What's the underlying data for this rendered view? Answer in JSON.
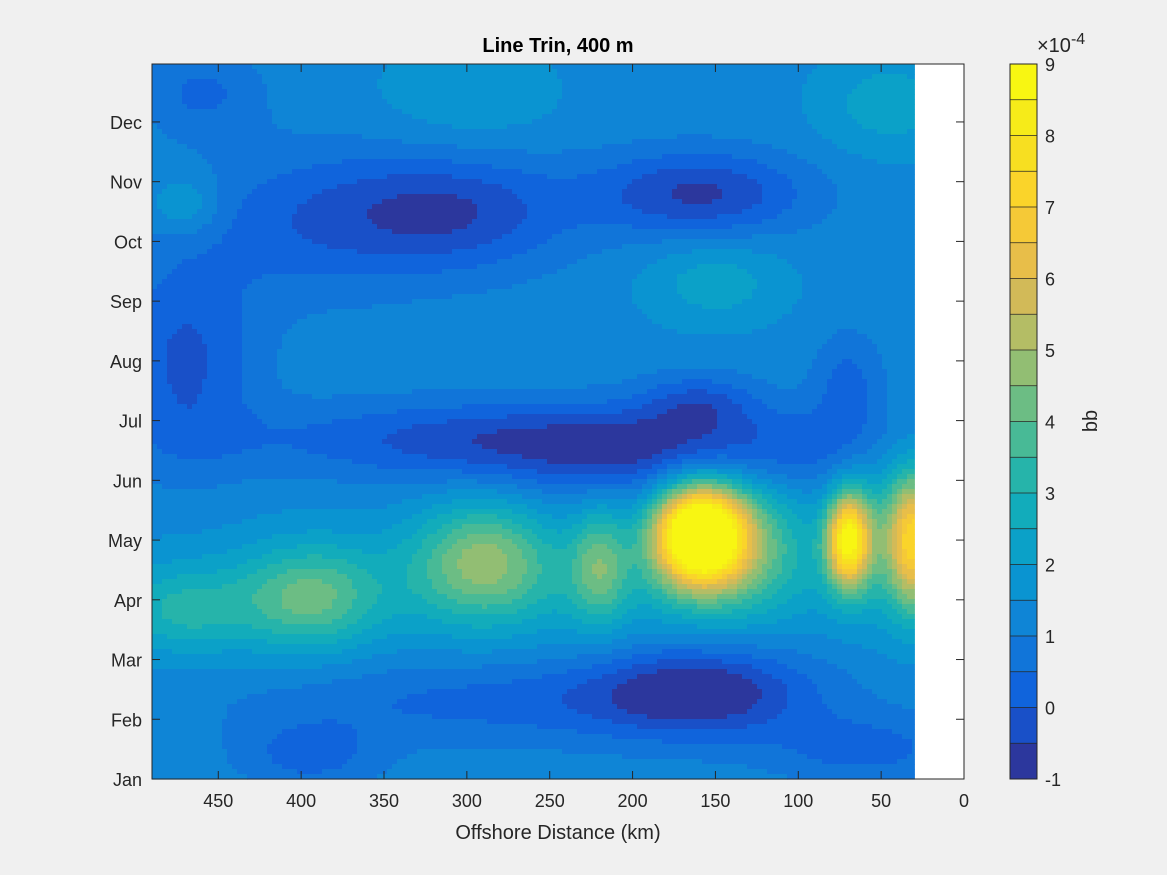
{
  "chart_data": {
    "type": "heatmap",
    "subtype": "filled-contour",
    "title": "Line Trin, 400 m",
    "xlabel": "Offshore Distance (km)",
    "ylabel": "",
    "x_reversed": true,
    "xlim": [
      0,
      490
    ],
    "xticks": [
      0,
      50,
      100,
      150,
      200,
      250,
      300,
      350,
      400,
      450
    ],
    "xtick_labels": [
      "0",
      "50",
      "100",
      "150",
      "200",
      "250",
      "300",
      "350",
      "400",
      "450"
    ],
    "data_x_range": [
      30,
      490
    ],
    "y_months": [
      "Jan",
      "Feb",
      "Mar",
      "Apr",
      "May",
      "Jun",
      "Jul",
      "Aug",
      "Sep",
      "Oct",
      "Nov",
      "Dec"
    ],
    "ylim_months": [
      1,
      12.97
    ],
    "colorbar": {
      "label": "bb",
      "exponent_label": "×10",
      "exponent_power": "-4",
      "min": -1,
      "max": 9,
      "levels": 20,
      "tick_values": [
        -1,
        0,
        1,
        2,
        3,
        4,
        5,
        6,
        7,
        8,
        9
      ],
      "tick_labels": [
        "-1",
        "0",
        "1",
        "2",
        "3",
        "4",
        "5",
        "6",
        "7",
        "8",
        "9"
      ],
      "colormap": "parula"
    },
    "background_value": 1.3,
    "features": [
      {
        "x": 160,
        "month": 5.1,
        "value": 8.6,
        "sx": 18,
        "sy": 0.55
      },
      {
        "x": 140,
        "month": 5.0,
        "value": 3.0,
        "sx": 30,
        "sy": 0.8
      },
      {
        "x": 70,
        "month": 5.0,
        "value": 6.6,
        "sx": 9,
        "sy": 0.55
      },
      {
        "x": 45,
        "month": 5.1,
        "value": 2.0,
        "sx": 20,
        "sy": 0.9
      },
      {
        "x": 30,
        "month": 5.0,
        "value": 4.5,
        "sx": 10,
        "sy": 0.8
      },
      {
        "x": 290,
        "month": 4.7,
        "value": 2.7,
        "sx": 28,
        "sy": 0.7
      },
      {
        "x": 220,
        "month": 4.6,
        "value": 2.2,
        "sx": 12,
        "sy": 0.7
      },
      {
        "x": 395,
        "month": 4.0,
        "value": 2.3,
        "sx": 28,
        "sy": 0.6
      },
      {
        "x": 470,
        "month": 3.8,
        "value": 1.6,
        "sx": 30,
        "sy": 0.5
      },
      {
        "x": 270,
        "month": 4.3,
        "value": 1.0,
        "sx": 150,
        "sy": 0.7
      },
      {
        "x": 250,
        "month": 6.7,
        "value": -1.7,
        "sx": 120,
        "sy": 0.45
      },
      {
        "x": 180,
        "month": 6.2,
        "value": -1.0,
        "sx": 90,
        "sy": 0.5
      },
      {
        "x": 160,
        "month": 2.5,
        "value": -2.0,
        "sx": 45,
        "sy": 0.55
      },
      {
        "x": 270,
        "month": 2.3,
        "value": -1.0,
        "sx": 110,
        "sy": 0.5
      },
      {
        "x": 310,
        "month": 10.5,
        "value": -1.8,
        "sx": 50,
        "sy": 0.7
      },
      {
        "x": 160,
        "month": 10.8,
        "value": -1.9,
        "sx": 45,
        "sy": 0.5
      },
      {
        "x": 400,
        "month": 10.3,
        "value": -1.0,
        "sx": 50,
        "sy": 0.9
      },
      {
        "x": 470,
        "month": 8.0,
        "value": -1.4,
        "sx": 30,
        "sy": 1.2
      },
      {
        "x": 150,
        "month": 9.3,
        "value": 1.0,
        "sx": 30,
        "sy": 0.5
      },
      {
        "x": 160,
        "month": 7.3,
        "value": -1.2,
        "sx": 25,
        "sy": 0.35
      },
      {
        "x": 70,
        "month": 7.6,
        "value": -1.0,
        "sx": 15,
        "sy": 0.6
      },
      {
        "x": 460,
        "month": 12.5,
        "value": -0.9,
        "sx": 25,
        "sy": 0.5
      },
      {
        "x": 470,
        "month": 10.6,
        "value": 1.0,
        "sx": 15,
        "sy": 0.35
      },
      {
        "x": 45,
        "month": 12.3,
        "value": 1.0,
        "sx": 30,
        "sy": 0.6
      },
      {
        "x": 300,
        "month": 12.4,
        "value": 0.6,
        "sx": 40,
        "sy": 0.7
      },
      {
        "x": 60,
        "month": 1.5,
        "value": -1.0,
        "sx": 40,
        "sy": 0.4
      },
      {
        "x": 395,
        "month": 1.4,
        "value": -1.0,
        "sx": 30,
        "sy": 0.4
      }
    ]
  }
}
